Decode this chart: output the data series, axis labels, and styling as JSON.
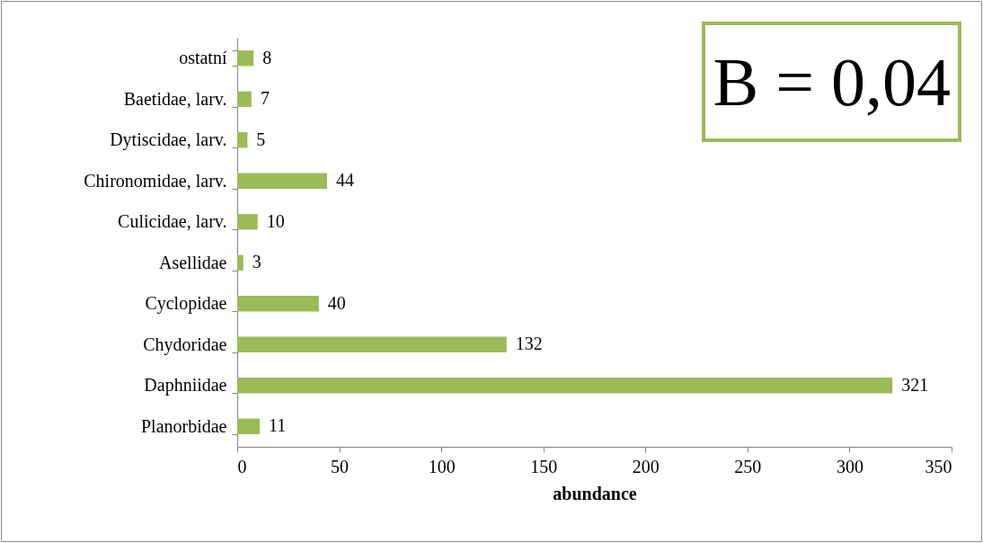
{
  "chart_data": {
    "type": "bar",
    "orientation": "horizontal",
    "categories": [
      "ostatní",
      "Baetidae, larv.",
      "Dytiscidae, larv.",
      "Chironomidae, larv.",
      "Culicidae, larv.",
      "Asellidae",
      "Cyclopidae",
      "Chydoridae",
      "Daphniidae",
      "Planorbidae"
    ],
    "values": [
      8,
      7,
      5,
      44,
      10,
      3,
      40,
      132,
      321,
      11
    ],
    "color": "#9bbb59",
    "xlim": [
      0,
      350
    ],
    "xticks": [
      0,
      50,
      100,
      150,
      200,
      250,
      300,
      350
    ],
    "xlabel": "abundance",
    "data_labels": true,
    "grid": false,
    "annotations": [
      "B = 0,04"
    ]
  }
}
